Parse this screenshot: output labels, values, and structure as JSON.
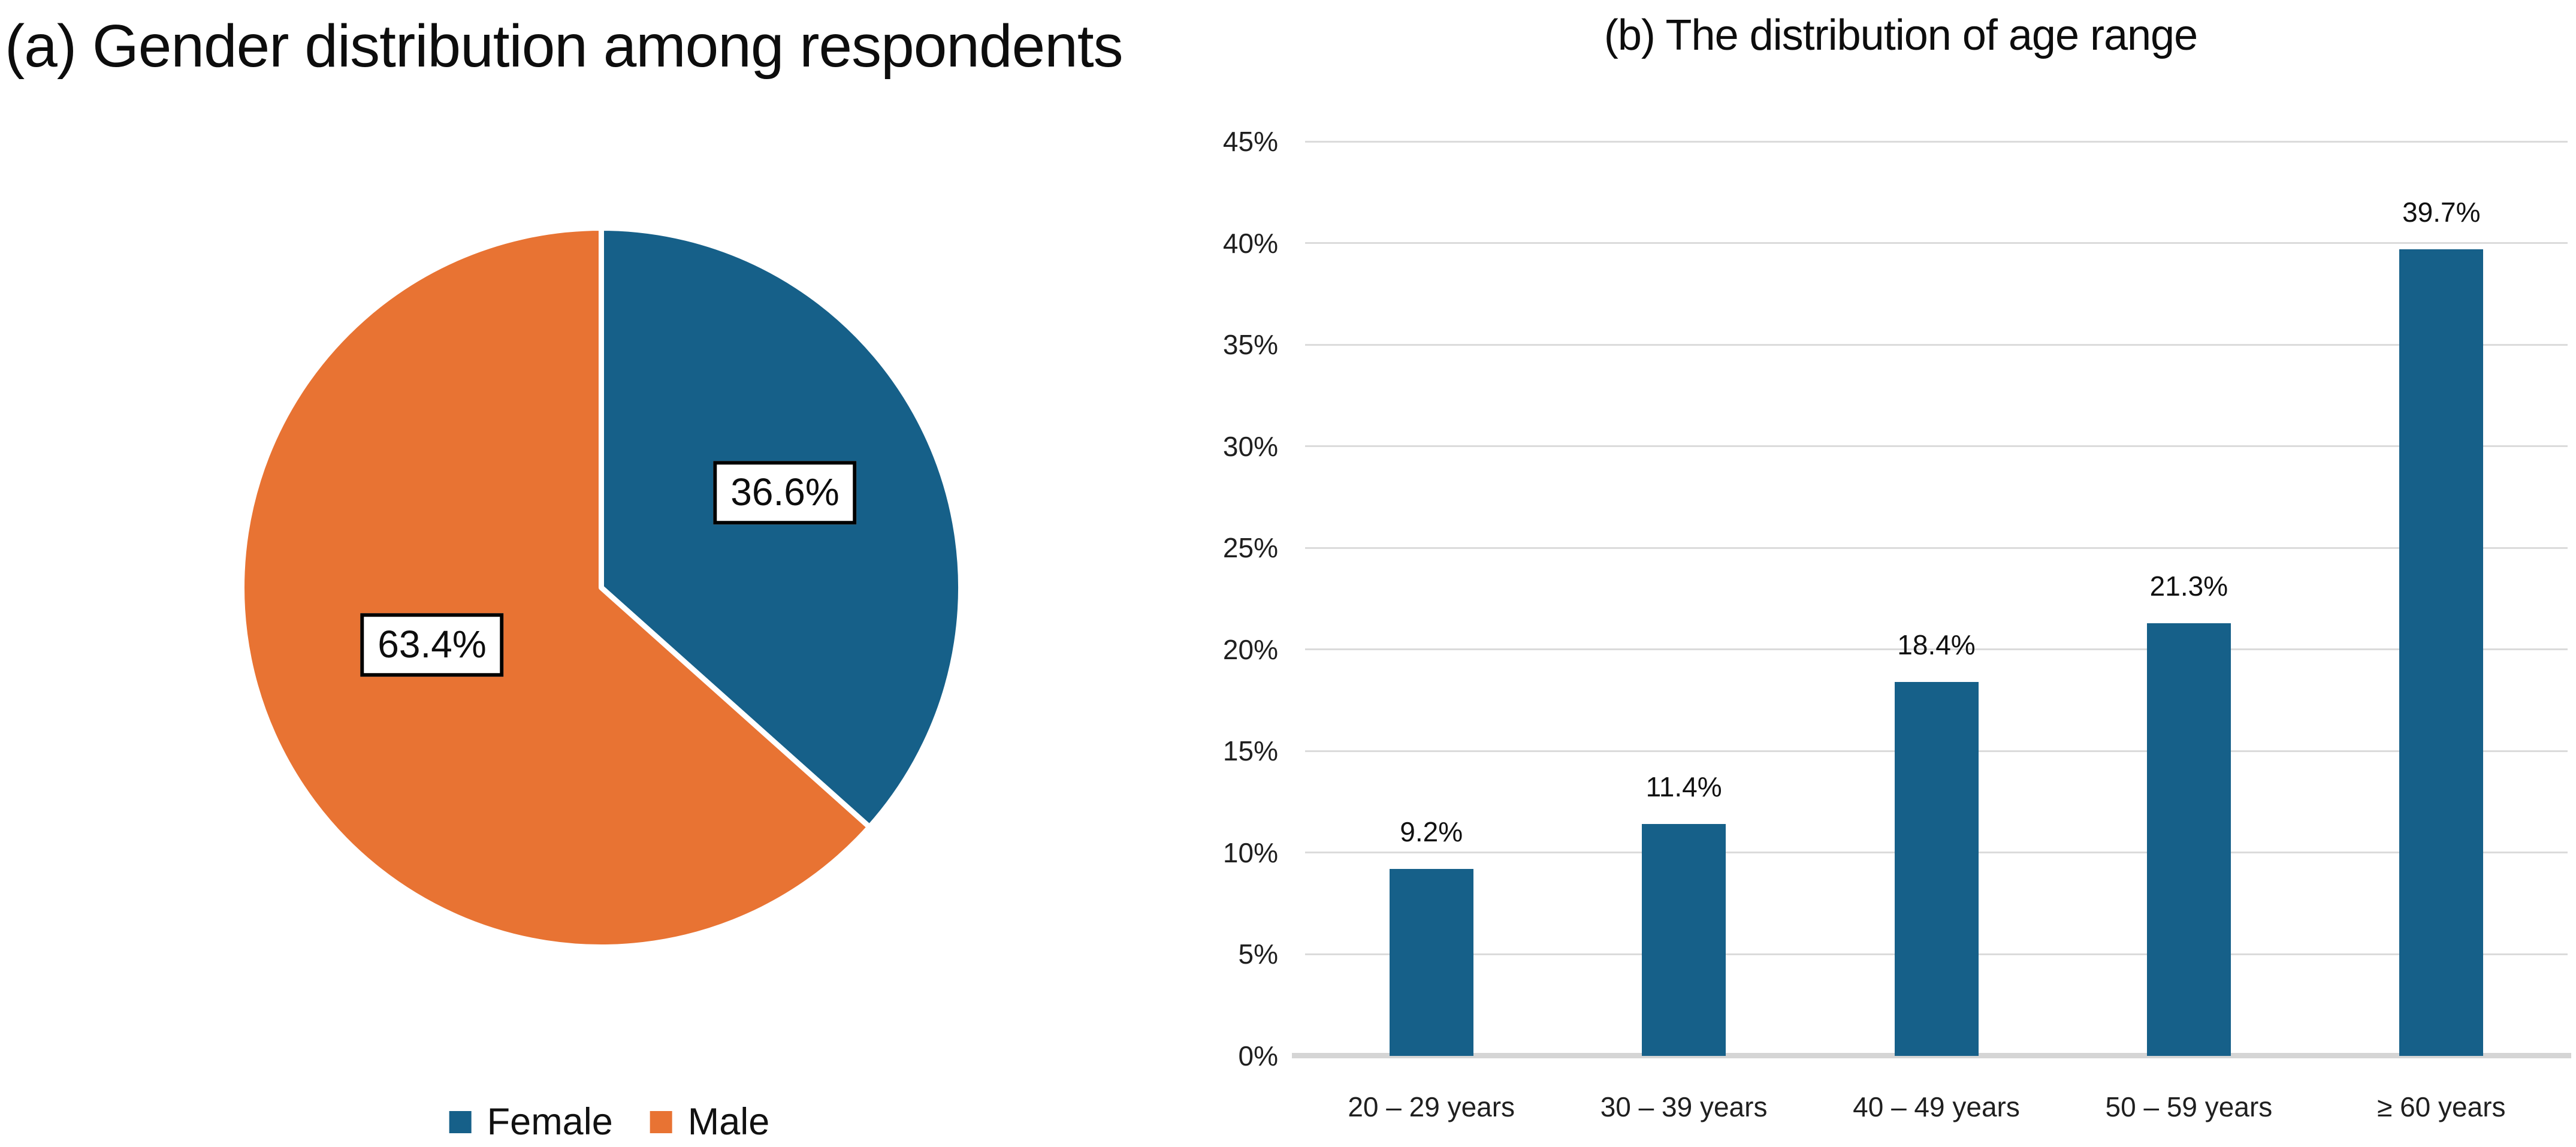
{
  "colors": {
    "female_blue": "#166089",
    "male_orange": "#E87333",
    "gridline": "#DBDBDB",
    "baseline": "#D5D5D5",
    "label_box_border": "#000000",
    "label_box_background": "#FFFFFF",
    "text": "#0D0D0D"
  },
  "chart_data": [
    {
      "type": "pie",
      "title": "(a) Gender distribution among respondents",
      "labels": [
        "Female",
        "Male"
      ],
      "values": [
        36.6,
        63.4
      ],
      "value_labels": [
        "36.6%",
        "63.4%"
      ],
      "colors": [
        "#166089",
        "#E87333"
      ],
      "start_angle": "12 o'clock",
      "direction": "clockwise",
      "legend_position": "bottom"
    },
    {
      "type": "bar",
      "title": "(b) The distribution of age range",
      "categories": [
        "20 – 29 years",
        "30 – 39 years",
        "40 – 49 years",
        "50 – 59 years",
        "≥ 60 years"
      ],
      "values": [
        9.2,
        11.4,
        18.4,
        21.3,
        39.7
      ],
      "value_labels": [
        "9.2%",
        "11.4%",
        "18.4%",
        "21.3%",
        "39.7%"
      ],
      "bar_color": "#166089",
      "xlabel": "",
      "ylabel": "",
      "ylim": [
        0,
        45
      ],
      "ytick_step": 5,
      "ytick_labels": [
        "0%",
        "5%",
        "10%",
        "15%",
        "20%",
        "25%",
        "30%",
        "35%",
        "40%",
        "45%"
      ],
      "grid": true,
      "legend_position": "none"
    }
  ]
}
